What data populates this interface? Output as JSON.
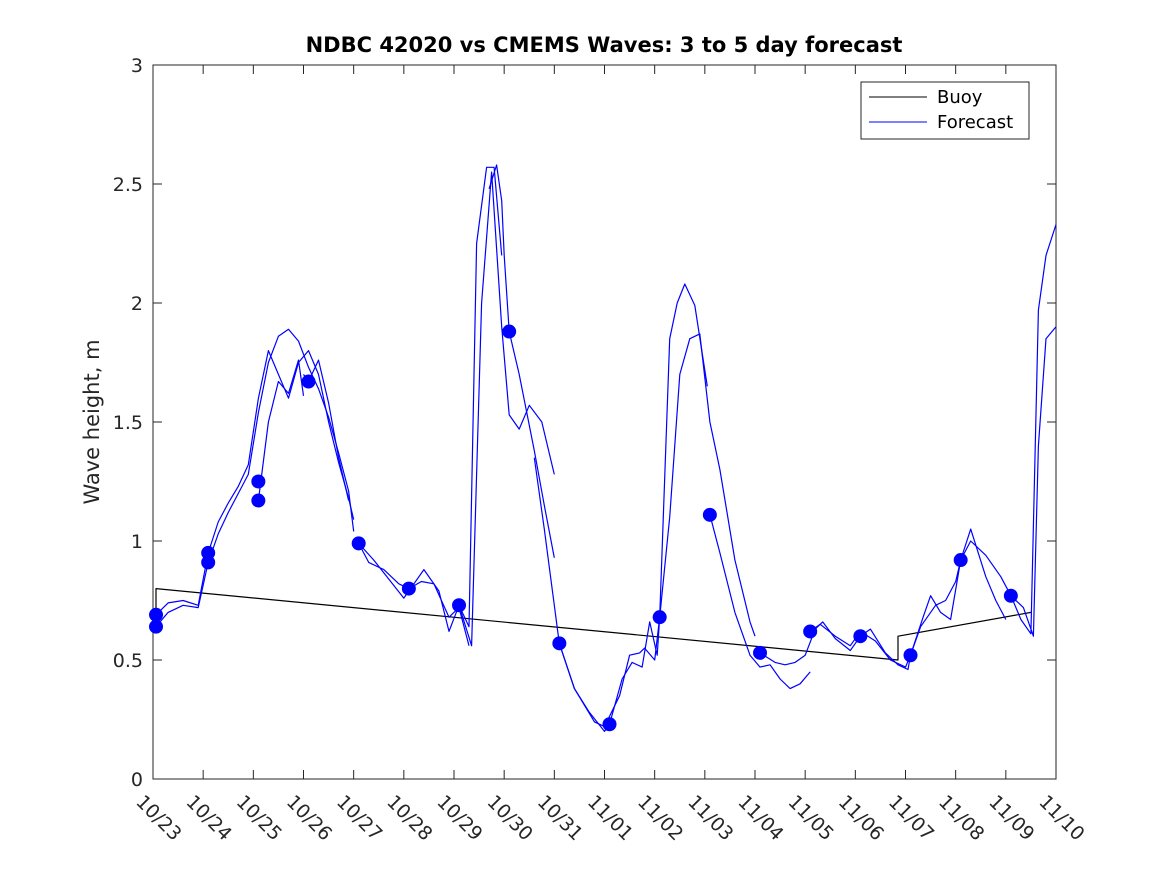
{
  "chart_data": {
    "type": "line",
    "title": "NDBC 42020 vs CMEMS Waves: 3 to 5 day forecast",
    "xlabel": "",
    "ylabel": "Wave height, m",
    "xlim": [
      0,
      18
    ],
    "ylim": [
      0,
      3
    ],
    "x_ticks": [
      {
        "x": 0,
        "label": "10/23"
      },
      {
        "x": 1,
        "label": "10/24"
      },
      {
        "x": 2,
        "label": "10/25"
      },
      {
        "x": 3,
        "label": "10/26"
      },
      {
        "x": 4,
        "label": "10/27"
      },
      {
        "x": 5,
        "label": "10/28"
      },
      {
        "x": 6,
        "label": "10/29"
      },
      {
        "x": 7,
        "label": "10/30"
      },
      {
        "x": 8,
        "label": "10/31"
      },
      {
        "x": 9,
        "label": "11/01"
      },
      {
        "x": 10,
        "label": "11/02"
      },
      {
        "x": 11,
        "label": "11/03"
      },
      {
        "x": 12,
        "label": "11/04"
      },
      {
        "x": 13,
        "label": "11/05"
      },
      {
        "x": 14,
        "label": "11/06"
      },
      {
        "x": 15,
        "label": "11/07"
      },
      {
        "x": 16,
        "label": "11/08"
      },
      {
        "x": 17,
        "label": "11/09"
      },
      {
        "x": 18,
        "label": "11/10"
      }
    ],
    "y_ticks": [
      {
        "y": 0,
        "label": "0"
      },
      {
        "y": 0.5,
        "label": "0.5"
      },
      {
        "y": 1,
        "label": "1"
      },
      {
        "y": 1.5,
        "label": "1.5"
      },
      {
        "y": 2,
        "label": "2"
      },
      {
        "y": 2.5,
        "label": "2.5"
      },
      {
        "y": 3,
        "label": "3"
      }
    ],
    "grid": false,
    "legend": {
      "position": "top-right",
      "entries": [
        {
          "label": "Buoy",
          "color": "#000000"
        },
        {
          "label": "Forecast",
          "color": "#0000ff"
        }
      ]
    },
    "series": [
      {
        "name": "Buoy",
        "color": "#000000",
        "x": [
          0.06,
          0.06,
          14.85,
          14.85,
          17.5
        ],
        "y": [
          0.66,
          0.8,
          0.5,
          0.6,
          0.7
        ]
      },
      {
        "name": "Forecast",
        "color": "#0000ff",
        "segments": [
          {
            "x": [
              0.06,
              0.3,
              0.6,
              0.9,
              1.1,
              1.3,
              1.5,
              1.7,
              1.9,
              2.1,
              2.3,
              2.5,
              2.7,
              2.9,
              3.1,
              3.3,
              3.5,
              3.7,
              3.9,
              4.0
            ],
            "y": [
              0.64,
              0.7,
              0.73,
              0.72,
              0.91,
              1.03,
              1.12,
              1.2,
              1.28,
              1.54,
              1.75,
              1.86,
              1.89,
              1.84,
              1.73,
              1.64,
              1.52,
              1.37,
              1.21,
              1.04
            ]
          },
          {
            "x": [
              0.06,
              0.3,
              0.6,
              0.9,
              1.1,
              1.3,
              1.5,
              1.7,
              1.9,
              2.1,
              2.3,
              2.5,
              2.7,
              2.9,
              3.1,
              3.3,
              3.5,
              3.7,
              3.9,
              4.0
            ],
            "y": [
              0.69,
              0.74,
              0.75,
              0.73,
              0.95,
              1.08,
              1.16,
              1.23,
              1.32,
              1.6,
              1.8,
              1.7,
              1.6,
              1.75,
              1.8,
              1.7,
              1.5,
              1.33,
              1.18,
              1.09
            ]
          },
          {
            "x": [
              2.1,
              2.3,
              2.5,
              2.7,
              2.9,
              3.0
            ],
            "y": [
              1.17,
              1.5,
              1.67,
              1.62,
              1.76,
              1.61
            ]
          },
          {
            "x": [
              3.0,
              3.1,
              3.3,
              3.5,
              3.7,
              3.9
            ],
            "y": [
              1.7,
              1.67,
              1.76,
              1.58,
              1.35,
              1.17
            ]
          },
          {
            "x": [
              4.1,
              4.3,
              4.6,
              4.9,
              5.1,
              5.35,
              5.6,
              5.9,
              6.1,
              6.3
            ],
            "y": [
              0.99,
              0.91,
              0.88,
              0.82,
              0.8,
              0.83,
              0.82,
              0.68,
              0.72,
              0.56
            ]
          },
          {
            "x": [
              4.1,
              4.4,
              4.7,
              5.0,
              5.2,
              5.4,
              5.7,
              5.9,
              6.1
            ],
            "y": [
              0.99,
              0.92,
              0.84,
              0.76,
              0.82,
              0.88,
              0.79,
              0.62,
              0.73
            ]
          },
          {
            "x": [
              6.1,
              6.3,
              6.45,
              6.65,
              6.8,
              6.95
            ],
            "y": [
              0.73,
              0.64,
              2.25,
              2.57,
              2.57,
              2.2
            ]
          },
          {
            "x": [
              6.1,
              6.35,
              6.55,
              6.75,
              6.95,
              7.1,
              7.3,
              7.5,
              7.75,
              8.0
            ],
            "y": [
              0.73,
              0.56,
              2.0,
              2.55,
              1.9,
              1.53,
              1.47,
              1.57,
              1.5,
              1.28
            ]
          },
          {
            "x": [
              6.7,
              6.85,
              6.95,
              7.0,
              7.1
            ],
            "y": [
              2.48,
              2.58,
              2.43,
              2.2,
              1.88
            ]
          },
          {
            "x": [
              7.1,
              7.3,
              7.6,
              7.8,
              8.0
            ],
            "y": [
              1.88,
              1.7,
              1.38,
              1.15,
              0.93
            ]
          },
          {
            "x": [
              7.6,
              7.8,
              8.1,
              8.4,
              8.7,
              9.0,
              9.1
            ],
            "y": [
              1.35,
              1.05,
              0.57,
              0.38,
              0.28,
              0.2,
              0.23
            ]
          },
          {
            "x": [
              8.1,
              8.4,
              8.8,
              9.0,
              9.3,
              9.5,
              9.7,
              9.8,
              10.0,
              10.1
            ],
            "y": [
              0.57,
              0.38,
              0.24,
              0.22,
              0.35,
              0.52,
              0.53,
              0.55,
              0.5,
              0.68
            ]
          },
          {
            "x": [
              9.1,
              9.35,
              9.55,
              9.75,
              9.9,
              10.05,
              10.1
            ],
            "y": [
              0.23,
              0.42,
              0.49,
              0.47,
              0.66,
              0.52,
              0.68
            ]
          },
          {
            "x": [
              10.1,
              10.3,
              10.45,
              10.6,
              10.8,
              11.05
            ],
            "y": [
              0.68,
              1.85,
              2.0,
              2.08,
              1.99,
              1.65
            ]
          },
          {
            "x": [
              10.1,
              10.3,
              10.5,
              10.7,
              10.9,
              11.1,
              11.3,
              11.6,
              11.9,
              12.0
            ],
            "y": [
              0.68,
              1.1,
              1.7,
              1.85,
              1.87,
              1.5,
              1.3,
              0.92,
              0.66,
              0.6
            ]
          },
          {
            "x": [
              11.1,
              11.3,
              11.6,
              11.9,
              12.1,
              12.3,
              12.5,
              12.7,
              12.9,
              13.1
            ],
            "y": [
              1.11,
              0.95,
              0.7,
              0.52,
              0.47,
              0.48,
              0.42,
              0.38,
              0.4,
              0.45
            ]
          },
          {
            "x": [
              12.1,
              12.4,
              12.6,
              12.8,
              13.0,
              13.2,
              13.35,
              13.6,
              13.9,
              14.1
            ],
            "y": [
              0.53,
              0.49,
              0.48,
              0.49,
              0.52,
              0.63,
              0.66,
              0.59,
              0.54,
              0.6
            ]
          },
          {
            "x": [
              13.1,
              13.3,
              13.6,
              13.9,
              14.1,
              14.4,
              14.7,
              15.0,
              15.1
            ],
            "y": [
              0.62,
              0.65,
              0.6,
              0.56,
              0.62,
              0.58,
              0.5,
              0.47,
              0.52
            ]
          },
          {
            "x": [
              14.1,
              14.3,
              14.6,
              14.85,
              15.05,
              15.1
            ],
            "y": [
              0.6,
              0.63,
              0.53,
              0.48,
              0.46,
              0.52
            ]
          },
          {
            "x": [
              15.1,
              15.3,
              15.6,
              15.8,
              16.0,
              16.1,
              16.3,
              16.6,
              16.9,
              17.1
            ],
            "y": [
              0.52,
              0.64,
              0.73,
              0.75,
              0.83,
              0.92,
              1.0,
              0.94,
              0.85,
              0.77
            ]
          },
          {
            "x": [
              15.1,
              15.35,
              15.5,
              15.7,
              15.9,
              16.1,
              16.3,
              16.6,
              16.8,
              17.0
            ],
            "y": [
              0.52,
              0.68,
              0.77,
              0.7,
              0.67,
              0.92,
              1.05,
              0.85,
              0.75,
              0.67
            ]
          },
          {
            "x": [
              17.1,
              17.3,
              17.5,
              17.65,
              17.8,
              18.0
            ],
            "y": [
              0.77,
              0.67,
              0.61,
              1.97,
              2.2,
              2.33
            ]
          },
          {
            "x": [
              17.1,
              17.35,
              17.55,
              17.65,
              17.8,
              18.0
            ],
            "y": [
              0.77,
              0.72,
              0.6,
              1.4,
              1.85,
              1.9
            ]
          }
        ]
      }
    ],
    "markers": {
      "series": "Forecast",
      "color": "#0000ff",
      "points": [
        {
          "x": 0.06,
          "y": 0.64
        },
        {
          "x": 0.06,
          "y": 0.69
        },
        {
          "x": 1.1,
          "y": 0.91
        },
        {
          "x": 1.1,
          "y": 0.95
        },
        {
          "x": 2.1,
          "y": 1.17
        },
        {
          "x": 2.1,
          "y": 1.25
        },
        {
          "x": 3.1,
          "y": 1.67
        },
        {
          "x": 4.1,
          "y": 0.99
        },
        {
          "x": 5.1,
          "y": 0.8
        },
        {
          "x": 6.1,
          "y": 0.73
        },
        {
          "x": 7.1,
          "y": 1.88
        },
        {
          "x": 8.1,
          "y": 0.57
        },
        {
          "x": 9.1,
          "y": 0.23
        },
        {
          "x": 10.1,
          "y": 0.68
        },
        {
          "x": 11.1,
          "y": 1.11
        },
        {
          "x": 12.1,
          "y": 0.53
        },
        {
          "x": 13.1,
          "y": 0.62
        },
        {
          "x": 14.1,
          "y": 0.6
        },
        {
          "x": 15.1,
          "y": 0.52
        },
        {
          "x": 16.1,
          "y": 0.92
        },
        {
          "x": 17.1,
          "y": 0.77
        }
      ]
    }
  }
}
